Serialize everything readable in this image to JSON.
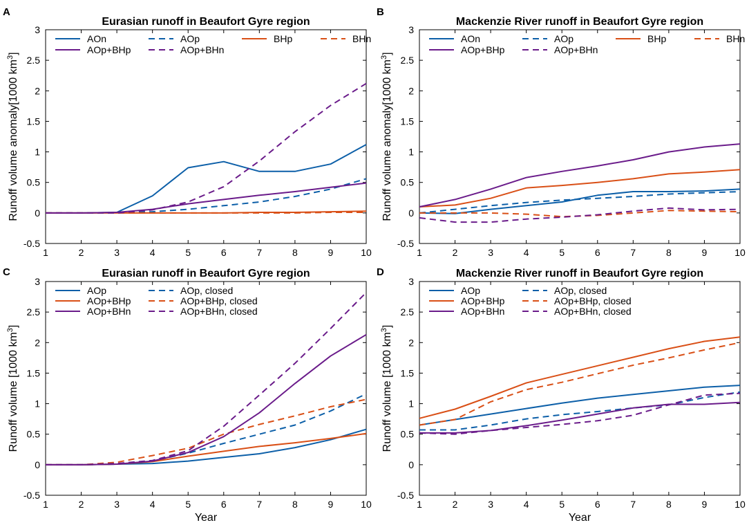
{
  "colors": {
    "blue": "#0c5fa8",
    "orange": "#d94f16",
    "purple": "#6a1b8a"
  },
  "chart_data": [
    {
      "panel": "A",
      "type": "line",
      "title": "Eurasian runoff in Beaufort Gyre region",
      "ylabel": "Runoff volume anomaly[1000 km",
      "ylabel_sup": "3",
      "ylabel_close": "]",
      "xlabel": "",
      "xlim": [
        1,
        10
      ],
      "ylim": [
        -0.5,
        3
      ],
      "xticks": [
        1,
        2,
        3,
        4,
        5,
        6,
        7,
        8,
        9,
        10
      ],
      "yticks": [
        -0.5,
        0,
        0.5,
        1,
        1.5,
        2,
        2.5,
        3
      ],
      "ytick_labels": [
        "-0.5",
        "0",
        "0.5",
        "1",
        "1.5",
        "2",
        "2.5",
        "3"
      ],
      "legend_columns": 4,
      "series": [
        {
          "name": "AOn",
          "color": "blue",
          "dash": false,
          "x": [
            1,
            2,
            3,
            4,
            5,
            6,
            7,
            8,
            9,
            10
          ],
          "values": [
            0,
            0,
            0.01,
            0.28,
            0.74,
            0.84,
            0.68,
            0.68,
            0.8,
            1.12
          ]
        },
        {
          "name": "AOp",
          "color": "blue",
          "dash": true,
          "x": [
            1,
            2,
            3,
            4,
            5,
            6,
            7,
            8,
            9,
            10
          ],
          "values": [
            0,
            0,
            0,
            0.02,
            0.06,
            0.12,
            0.18,
            0.27,
            0.39,
            0.56
          ]
        },
        {
          "name": "BHp",
          "color": "orange",
          "dash": false,
          "x": [
            1,
            2,
            3,
            4,
            5,
            6,
            7,
            8,
            9,
            10
          ],
          "values": [
            0,
            0,
            0,
            0,
            0,
            0,
            0.01,
            0.01,
            0.02,
            0.03
          ]
        },
        {
          "name": "BHn",
          "color": "orange",
          "dash": true,
          "x": [
            1,
            2,
            3,
            4,
            5,
            6,
            7,
            8,
            9,
            10
          ],
          "values": [
            0,
            0,
            0,
            0,
            0,
            0,
            0,
            0,
            0.01,
            0.01
          ]
        },
        {
          "name": "AOp+BHp",
          "color": "purple",
          "dash": false,
          "x": [
            1,
            2,
            3,
            4,
            5,
            6,
            7,
            8,
            9,
            10
          ],
          "values": [
            0,
            0,
            0.01,
            0.06,
            0.15,
            0.22,
            0.29,
            0.35,
            0.42,
            0.49
          ]
        },
        {
          "name": "AOp+BHn",
          "color": "purple",
          "dash": true,
          "x": [
            1,
            2,
            3,
            4,
            5,
            6,
            7,
            8,
            9,
            10
          ],
          "values": [
            0,
            0,
            0,
            0.05,
            0.18,
            0.43,
            0.85,
            1.33,
            1.76,
            2.12
          ]
        }
      ]
    },
    {
      "panel": "B",
      "type": "line",
      "title": "Mackenzie River runoff in Beaufort Gyre region",
      "ylabel": "Runoff volume anomaly[1000 km",
      "ylabel_sup": "3",
      "ylabel_close": "]",
      "xlabel": "",
      "xlim": [
        1,
        10
      ],
      "ylim": [
        -0.5,
        3
      ],
      "xticks": [
        1,
        2,
        3,
        4,
        5,
        6,
        7,
        8,
        9,
        10
      ],
      "yticks": [
        -0.5,
        0,
        0.5,
        1,
        1.5,
        2,
        2.5,
        3
      ],
      "ytick_labels": [
        "-0.5",
        "0",
        "0.5",
        "1",
        "1.5",
        "2",
        "2.5",
        "3"
      ],
      "legend_columns": 4,
      "series": [
        {
          "name": "AOn",
          "color": "blue",
          "dash": false,
          "x": [
            1,
            2,
            3,
            4,
            5,
            6,
            7,
            8,
            9,
            10
          ],
          "values": [
            0,
            -0.01,
            0.06,
            0.12,
            0.18,
            0.29,
            0.35,
            0.35,
            0.36,
            0.39
          ]
        },
        {
          "name": "AOp",
          "color": "blue",
          "dash": true,
          "x": [
            1,
            2,
            3,
            4,
            5,
            6,
            7,
            8,
            9,
            10
          ],
          "values": [
            0,
            0.06,
            0.12,
            0.17,
            0.21,
            0.24,
            0.27,
            0.31,
            0.33,
            0.35
          ]
        },
        {
          "name": "BHp",
          "color": "orange",
          "dash": false,
          "x": [
            1,
            2,
            3,
            4,
            5,
            6,
            7,
            8,
            9,
            10
          ],
          "values": [
            0.1,
            0.13,
            0.24,
            0.41,
            0.45,
            0.5,
            0.56,
            0.64,
            0.67,
            0.71
          ]
        },
        {
          "name": "BHn",
          "color": "orange",
          "dash": true,
          "x": [
            1,
            2,
            3,
            4,
            5,
            6,
            7,
            8,
            9,
            10
          ],
          "values": [
            0,
            0,
            0,
            -0.02,
            -0.06,
            -0.04,
            0,
            0.04,
            0.03,
            0.02
          ]
        },
        {
          "name": "AOp+BHp",
          "color": "purple",
          "dash": false,
          "x": [
            1,
            2,
            3,
            4,
            5,
            6,
            7,
            8,
            9,
            10
          ],
          "values": [
            0.1,
            0.22,
            0.39,
            0.58,
            0.68,
            0.77,
            0.87,
            1.0,
            1.08,
            1.13
          ]
        },
        {
          "name": "AOp+BHn",
          "color": "purple",
          "dash": true,
          "x": [
            1,
            2,
            3,
            4,
            5,
            6,
            7,
            8,
            9,
            10
          ],
          "values": [
            -0.08,
            -0.15,
            -0.15,
            -0.1,
            -0.07,
            -0.03,
            0.03,
            0.08,
            0.05,
            0.06
          ]
        }
      ]
    },
    {
      "panel": "C",
      "type": "line",
      "title": "Eurasian runoff in Beaufort Gyre region",
      "ylabel": "Runoff volume [1000 km",
      "ylabel_sup": "3",
      "ylabel_close": "]",
      "xlabel": "Year",
      "xlim": [
        1,
        10
      ],
      "ylim": [
        -0.5,
        3
      ],
      "xticks": [
        1,
        2,
        3,
        4,
        5,
        6,
        7,
        8,
        9,
        10
      ],
      "yticks": [
        -0.5,
        0,
        0.5,
        1,
        1.5,
        2,
        2.5,
        3
      ],
      "ytick_labels": [
        "-0.5",
        "0",
        "0.5",
        "1",
        "1.5",
        "2",
        "2.5",
        "3"
      ],
      "legend_columns": 2,
      "series": [
        {
          "name": "AOp",
          "color": "blue",
          "dash": false,
          "x": [
            1,
            2,
            3,
            4,
            5,
            6,
            7,
            8,
            9,
            10
          ],
          "values": [
            0,
            0,
            0.01,
            0.02,
            0.06,
            0.12,
            0.18,
            0.28,
            0.41,
            0.58
          ]
        },
        {
          "name": "AOp, closed",
          "color": "blue",
          "dash": true,
          "x": [
            1,
            2,
            3,
            4,
            5,
            6,
            7,
            8,
            9,
            10
          ],
          "values": [
            0,
            0,
            0.01,
            0.06,
            0.19,
            0.35,
            0.5,
            0.65,
            0.88,
            1.16
          ]
        },
        {
          "name": "AOp+BHp",
          "color": "orange",
          "dash": false,
          "x": [
            1,
            2,
            3,
            4,
            5,
            6,
            7,
            8,
            9,
            10
          ],
          "values": [
            0,
            0,
            0.01,
            0.05,
            0.14,
            0.22,
            0.3,
            0.36,
            0.43,
            0.51
          ]
        },
        {
          "name": "AOp+BHp, closed",
          "color": "orange",
          "dash": true,
          "x": [
            1,
            2,
            3,
            4,
            5,
            6,
            7,
            8,
            9,
            10
          ],
          "values": [
            0,
            0,
            0.04,
            0.15,
            0.27,
            0.5,
            0.66,
            0.8,
            0.95,
            1.07
          ]
        },
        {
          "name": "AOp+BHn",
          "color": "purple",
          "dash": false,
          "x": [
            1,
            2,
            3,
            4,
            5,
            6,
            7,
            8,
            9,
            10
          ],
          "values": [
            0,
            0,
            0.01,
            0.06,
            0.2,
            0.46,
            0.85,
            1.33,
            1.78,
            2.13
          ]
        },
        {
          "name": "AOp+BHn, closed",
          "color": "purple",
          "dash": true,
          "x": [
            1,
            2,
            3,
            4,
            5,
            6,
            7,
            8,
            9,
            10
          ],
          "values": [
            0,
            0,
            0.02,
            0.07,
            0.23,
            0.63,
            1.14,
            1.66,
            2.23,
            2.82
          ]
        }
      ]
    },
    {
      "panel": "D",
      "type": "line",
      "title": "Mackenzie River runoff in Beaufort Gyre region",
      "ylabel": "Runoff volume [1000 km",
      "ylabel_sup": "3",
      "ylabel_close": "]",
      "xlabel": "Year",
      "xlim": [
        1,
        10
      ],
      "ylim": [
        -0.5,
        3
      ],
      "xticks": [
        1,
        2,
        3,
        4,
        5,
        6,
        7,
        8,
        9,
        10
      ],
      "yticks": [
        -0.5,
        0,
        0.5,
        1,
        1.5,
        2,
        2.5,
        3
      ],
      "ytick_labels": [
        "-0.5",
        "0",
        "0.5",
        "1",
        "1.5",
        "2",
        "2.5",
        "3"
      ],
      "legend_columns": 2,
      "series": [
        {
          "name": "AOp",
          "color": "blue",
          "dash": false,
          "x": [
            1,
            2,
            3,
            4,
            5,
            6,
            7,
            8,
            9,
            10
          ],
          "values": [
            0.65,
            0.74,
            0.83,
            0.92,
            1.01,
            1.09,
            1.15,
            1.21,
            1.27,
            1.3
          ]
        },
        {
          "name": "AOp, closed",
          "color": "blue",
          "dash": true,
          "x": [
            1,
            2,
            3,
            4,
            5,
            6,
            7,
            8,
            9,
            10
          ],
          "values": [
            0.57,
            0.57,
            0.65,
            0.75,
            0.82,
            0.87,
            0.93,
            0.98,
            1.1,
            1.19
          ]
        },
        {
          "name": "AOp+BHp",
          "color": "orange",
          "dash": false,
          "x": [
            1,
            2,
            3,
            4,
            5,
            6,
            7,
            8,
            9,
            10
          ],
          "values": [
            0.76,
            0.91,
            1.12,
            1.34,
            1.48,
            1.62,
            1.76,
            1.9,
            2.02,
            2.09
          ]
        },
        {
          "name": "AOp+BHp, closed",
          "color": "orange",
          "dash": true,
          "x": [
            1,
            2,
            3,
            4,
            5,
            6,
            7,
            8,
            9,
            10
          ],
          "values": [
            0.65,
            0.74,
            1.03,
            1.23,
            1.35,
            1.49,
            1.63,
            1.75,
            1.88,
            2.0
          ]
        },
        {
          "name": "AOp+BHn",
          "color": "purple",
          "dash": false,
          "x": [
            1,
            2,
            3,
            4,
            5,
            6,
            7,
            8,
            9,
            10
          ],
          "values": [
            0.52,
            0.52,
            0.56,
            0.64,
            0.73,
            0.83,
            0.93,
            0.99,
            0.99,
            1.02
          ]
        },
        {
          "name": "AOp+BHn, closed",
          "color": "purple",
          "dash": true,
          "x": [
            1,
            2,
            3,
            4,
            5,
            6,
            7,
            8,
            9,
            10
          ],
          "values": [
            0.52,
            0.5,
            0.56,
            0.61,
            0.66,
            0.72,
            0.81,
            0.98,
            1.14,
            1.17
          ]
        }
      ]
    }
  ]
}
